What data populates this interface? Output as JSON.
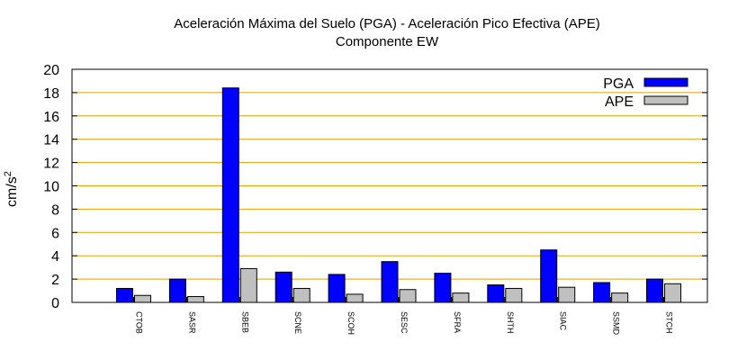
{
  "chart_data": {
    "type": "bar",
    "title": "Aceleración Máxima del Suelo (PGA) -  Aceleración Pico Efectiva (APE)",
    "subtitle": "Componente EW",
    "xlabel": "",
    "ylabel": "cm/s",
    "ylabel_sup": "2",
    "ylim": [
      0,
      20
    ],
    "yticks": [
      "0",
      "2",
      "4",
      "6",
      "8",
      "10",
      "12",
      "14",
      "16",
      "18",
      "20"
    ],
    "grid": "horizontal",
    "legend_position": "top-right",
    "categories": [
      "CTOB",
      "SASR",
      "SBEB",
      "SCNE",
      "SCOH",
      "SESC",
      "SFRA",
      "SHTH",
      "SIAC",
      "SSMD",
      "STCH"
    ],
    "series": [
      {
        "name": "PGA",
        "color": "#0000ff",
        "values": [
          1.2,
          2.0,
          18.4,
          2.6,
          2.4,
          3.5,
          2.5,
          1.5,
          4.5,
          1.7,
          2.0
        ]
      },
      {
        "name": "APE",
        "color": "#c0c0c0",
        "values": [
          0.6,
          0.5,
          2.9,
          1.2,
          0.7,
          1.1,
          0.8,
          1.2,
          1.3,
          0.8,
          1.6
        ]
      }
    ],
    "grid_color": "#e0a000"
  }
}
